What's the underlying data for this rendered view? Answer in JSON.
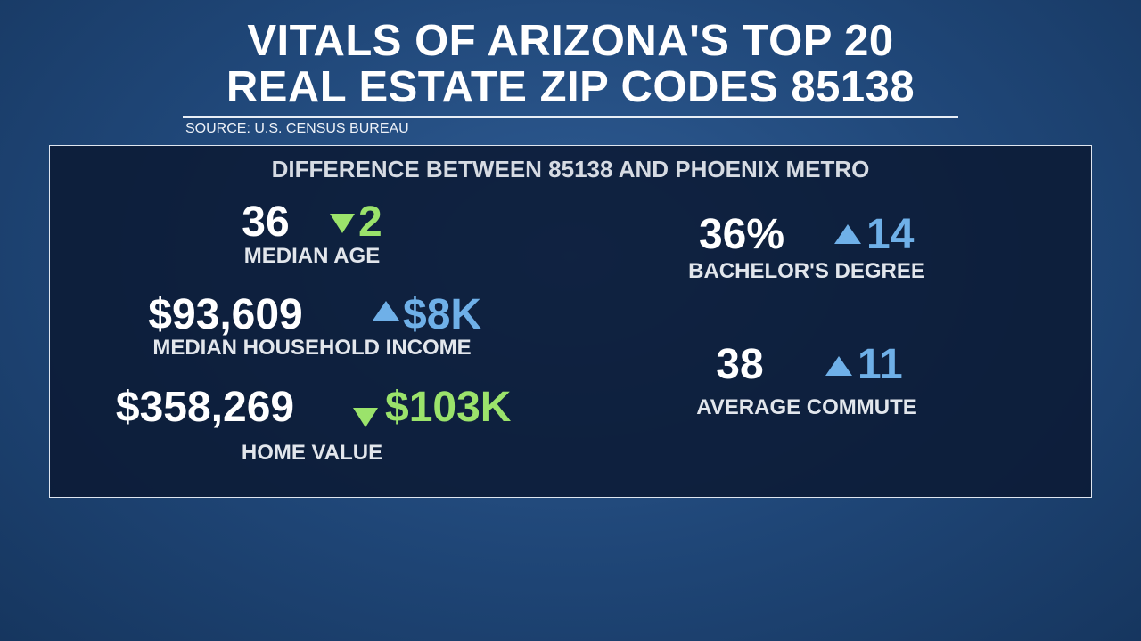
{
  "header": {
    "title": [
      "VITALS OF ARIZONA'S TOP 20",
      "REAL ESTATE ZIP CODES 85138"
    ],
    "source": "SOURCE: U.S. CENSUS BUREAU"
  },
  "panel": {
    "heading": "DIFFERENCE BETWEEN 85138 AND PHOENIX METRO",
    "stats": [
      {
        "value": "36",
        "change": "2",
        "label": "MEDIAN AGE"
      },
      {
        "value": "$93,609",
        "change": "$8K",
        "label": "MEDIAN HOUSEHOLD INCOME"
      },
      {
        "value": "$358,269",
        "change": "$103K",
        "label": "HOME VALUE"
      },
      {
        "value": "36%",
        "change": "14",
        "label": "BACHELOR'S DEGREE"
      },
      {
        "value": "38",
        "change": "11",
        "label": "AVERAGE COMMUTE"
      }
    ]
  }
}
